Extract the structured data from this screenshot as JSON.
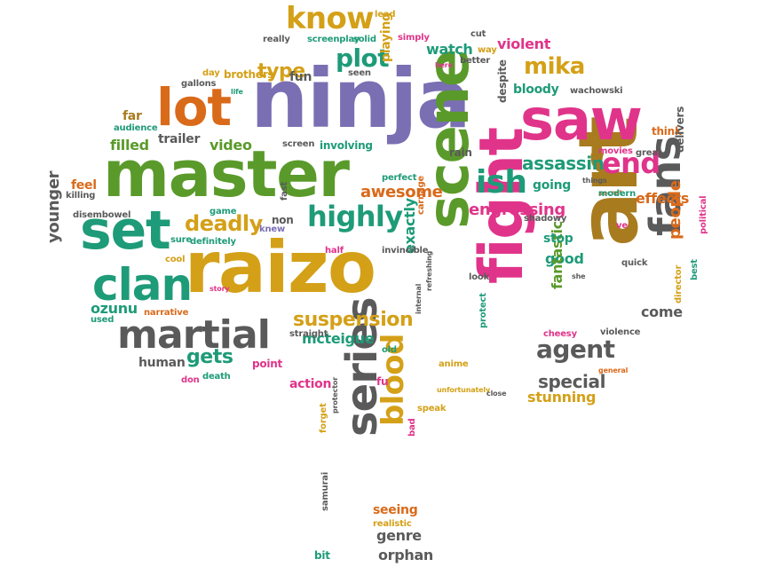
{
  "colors": {
    "purple": "#7a6fb3",
    "green": "#5a9a2a",
    "gold": "#d4a017",
    "orange": "#d96a1a",
    "magenta": "#e0348a",
    "teal": "#1e9b78",
    "gray": "#5a5a5a",
    "brown": "#a87b1f"
  },
  "words": [
    {
      "text": "ninja",
      "color": "purple"
    },
    {
      "text": "master",
      "color": "green"
    },
    {
      "text": "raizo",
      "color": "gold"
    },
    {
      "text": "art",
      "color": "brown"
    },
    {
      "text": "fight",
      "color": "magenta"
    },
    {
      "text": "saw",
      "color": "magenta"
    },
    {
      "text": "scene",
      "color": "green"
    },
    {
      "text": "lot",
      "color": "orange"
    },
    {
      "text": "set",
      "color": "teal"
    },
    {
      "text": "series",
      "color": "gray"
    },
    {
      "text": "clan",
      "color": "teal"
    },
    {
      "text": "martial",
      "color": "gray"
    },
    {
      "text": "fans",
      "color": "gray"
    },
    {
      "text": "blood",
      "color": "gold"
    },
    {
      "text": "know",
      "color": "gold"
    },
    {
      "text": "highly",
      "color": "teal"
    },
    {
      "text": "ish",
      "color": "teal"
    },
    {
      "text": "end",
      "color": "magenta"
    },
    {
      "text": "plot",
      "color": "teal"
    },
    {
      "text": "mika",
      "color": "gold"
    },
    {
      "text": "agent",
      "color": "gray"
    },
    {
      "text": "suspension",
      "color": "gold"
    },
    {
      "text": "deadly",
      "color": "gold"
    },
    {
      "text": "assassin",
      "color": "teal"
    },
    {
      "text": "type",
      "color": "gold"
    },
    {
      "text": "gets",
      "color": "teal"
    },
    {
      "text": "special",
      "color": "gray"
    },
    {
      "text": "awesome",
      "color": "orange"
    },
    {
      "text": "engrossing",
      "color": "magenta"
    },
    {
      "text": "people",
      "color": "orange"
    },
    {
      "text": "exactly",
      "color": "teal"
    },
    {
      "text": "younger",
      "color": "gray"
    },
    {
      "text": "filled",
      "color": "green"
    },
    {
      "text": "video",
      "color": "green"
    },
    {
      "text": "trailer",
      "color": "gray"
    },
    {
      "text": "human",
      "color": "gray"
    },
    {
      "text": "mcteigue",
      "color": "teal"
    },
    {
      "text": "good",
      "color": "teal"
    },
    {
      "text": "fantastic",
      "color": "green"
    },
    {
      "text": "stunning",
      "color": "gold"
    },
    {
      "text": "effects",
      "color": "orange"
    },
    {
      "text": "come",
      "color": "gray"
    },
    {
      "text": "watch",
      "color": "teal"
    },
    {
      "text": "violent",
      "color": "magenta"
    },
    {
      "text": "bloody",
      "color": "teal"
    },
    {
      "text": "playing",
      "color": "gold"
    },
    {
      "text": "fun",
      "color": "gray"
    },
    {
      "text": "genre",
      "color": "gray"
    },
    {
      "text": "seeing",
      "color": "orange"
    },
    {
      "text": "orphan",
      "color": "gray"
    },
    {
      "text": "action",
      "color": "magenta"
    },
    {
      "text": "ozunu",
      "color": "teal"
    },
    {
      "text": "far",
      "color": "brown"
    },
    {
      "text": "feel",
      "color": "orange"
    },
    {
      "text": "point",
      "color": "magenta"
    },
    {
      "text": "going",
      "color": "teal"
    },
    {
      "text": "stop",
      "color": "teal"
    },
    {
      "text": "rain",
      "color": "gray"
    },
    {
      "text": "despite",
      "color": "gray"
    },
    {
      "text": "think",
      "color": "orange"
    },
    {
      "text": "delivers",
      "color": "gray"
    },
    {
      "text": "non",
      "color": "gray"
    },
    {
      "text": "involving",
      "color": "teal"
    },
    {
      "text": "brothers",
      "color": "gold"
    },
    {
      "text": "fu",
      "color": "magenta"
    },
    {
      "text": "bit",
      "color": "teal"
    },
    {
      "text": "director",
      "color": "gold"
    },
    {
      "text": "shadowy",
      "color": "gray"
    },
    {
      "text": "anime",
      "color": "gold"
    },
    {
      "text": "violence",
      "color": "gray"
    },
    {
      "text": "cheesy",
      "color": "magenta"
    },
    {
      "text": "great",
      "color": "gray"
    },
    {
      "text": "movies",
      "color": "magenta"
    },
    {
      "text": "wachowski",
      "color": "gray"
    },
    {
      "text": "really",
      "color": "gray"
    },
    {
      "text": "screenplay",
      "color": "teal"
    },
    {
      "text": "solid",
      "color": "teal"
    },
    {
      "text": "simply",
      "color": "magenta"
    },
    {
      "text": "lead",
      "color": "gold"
    },
    {
      "text": "cut",
      "color": "gray"
    },
    {
      "text": "way",
      "color": "gold"
    },
    {
      "text": "better",
      "color": "gray"
    },
    {
      "text": "seen",
      "color": "gray"
    },
    {
      "text": "day",
      "color": "gold"
    },
    {
      "text": "hero",
      "color": "magenta"
    },
    {
      "text": "gallons",
      "color": "gray"
    },
    {
      "text": "life",
      "color": "teal"
    },
    {
      "text": "audience",
      "color": "teal"
    },
    {
      "text": "screen",
      "color": "gray"
    },
    {
      "text": "perfect",
      "color": "teal"
    },
    {
      "text": "fast",
      "color": "gray"
    },
    {
      "text": "knew",
      "color": "purple"
    },
    {
      "text": "killing",
      "color": "gray"
    },
    {
      "text": "game",
      "color": "teal"
    },
    {
      "text": "disembowel",
      "color": "gray"
    },
    {
      "text": "sure",
      "color": "teal"
    },
    {
      "text": "definitely",
      "color": "teal"
    },
    {
      "text": "half",
      "color": "magenta"
    },
    {
      "text": "invincible",
      "color": "gray"
    },
    {
      "text": "carnage",
      "color": "orange"
    },
    {
      "text": "cool",
      "color": "gold"
    },
    {
      "text": "story",
      "color": "magenta"
    },
    {
      "text": "narrative",
      "color": "orange"
    },
    {
      "text": "used",
      "color": "teal"
    },
    {
      "text": "straight",
      "color": "gray"
    },
    {
      "text": "refreshing",
      "color": "gray"
    },
    {
      "text": "old",
      "color": "teal"
    },
    {
      "text": "look",
      "color": "gray"
    },
    {
      "text": "protect",
      "color": "teal"
    },
    {
      "text": "internal",
      "color": "gray"
    },
    {
      "text": "secret",
      "color": "orange"
    },
    {
      "text": "things",
      "color": "gray"
    },
    {
      "text": "modern",
      "color": "teal"
    },
    {
      "text": "ve",
      "color": "magenta"
    },
    {
      "text": "quick",
      "color": "gray"
    },
    {
      "text": "political",
      "color": "magenta"
    },
    {
      "text": "best",
      "color": "teal"
    },
    {
      "text": "general",
      "color": "orange"
    },
    {
      "text": "don",
      "color": "magenta"
    },
    {
      "text": "death",
      "color": "teal"
    },
    {
      "text": "speak",
      "color": "gold"
    },
    {
      "text": "unfortunately",
      "color": "gold"
    },
    {
      "text": "close",
      "color": "gray"
    },
    {
      "text": "forget",
      "color": "gold"
    },
    {
      "text": "protector",
      "color": "gray"
    },
    {
      "text": "bad",
      "color": "magenta"
    },
    {
      "text": "realistic",
      "color": "gold"
    },
    {
      "text": "samurai",
      "color": "gray"
    },
    {
      "text": "she",
      "color": "gray"
    }
  ]
}
